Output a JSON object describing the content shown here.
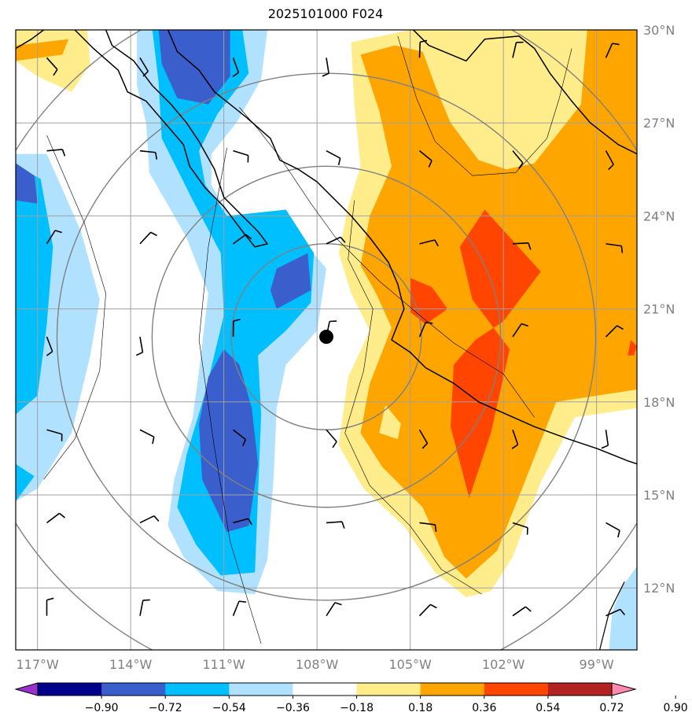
{
  "title": "2025101000 F024",
  "map": {
    "lon_range": [
      -117.7,
      -97.7
    ],
    "lat_range": [
      10.0,
      30.0
    ],
    "lon_ticks": [
      -117,
      -114,
      -111,
      -108,
      -105,
      -102,
      -99
    ],
    "lon_tick_labels": [
      "117°W",
      "114°W",
      "111°W",
      "108°W",
      "105°W",
      "102°W",
      "99°W"
    ],
    "lat_ticks": [
      12,
      15,
      18,
      21,
      24,
      27,
      30
    ],
    "lat_tick_labels": [
      "12°N",
      "15°N",
      "18°N",
      "21°N",
      "24°N",
      "27°N",
      "30°N"
    ],
    "center_marker": {
      "lon": -107.7,
      "lat": 20.1
    },
    "range_rings_deg": [
      3,
      5.5,
      8.5,
      11.5
    ]
  },
  "colorbar": {
    "levels": [
      -0.9,
      -0.72,
      -0.54,
      -0.36,
      -0.18,
      0.18,
      0.36,
      0.54,
      0.72,
      0.9
    ],
    "level_labels": [
      "−0.90",
      "−0.72",
      "−0.54",
      "−0.36",
      "−0.18",
      "0.18",
      "0.36",
      "0.54",
      "0.72",
      "0.90"
    ],
    "colors": [
      "#9932cc",
      "#00008b",
      "#3a5fcd",
      "#00bfff",
      "#b0e2ff",
      "#ffffff",
      "#ffec8b",
      "#ffa500",
      "#ff4500",
      "#b22222",
      "#ff88b0"
    ]
  },
  "colors": {
    "grid": "#a0a0a0",
    "ring": "#808080",
    "coast": "#000000"
  }
}
